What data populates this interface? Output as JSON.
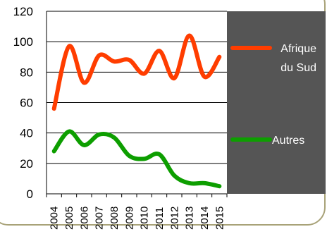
{
  "chart_data": {
    "type": "line",
    "x": [
      "2004",
      "2005",
      "2006",
      "2007",
      "2008",
      "2009",
      "2010",
      "2011",
      "2012",
      "2013",
      "2014",
      "2015"
    ],
    "series": [
      {
        "name": "Afrique du Sud",
        "color": "#ff3d00",
        "values": [
          56,
          97,
          73,
          91,
          87,
          88,
          79,
          94,
          76,
          104,
          77,
          90
        ],
        "legend_lines": [
          "Afrique",
          "du Sud"
        ]
      },
      {
        "name": "Autres",
        "color": "#0d9e00",
        "values": [
          28,
          41,
          32,
          39,
          37,
          25,
          23,
          26,
          12,
          7,
          7,
          5
        ],
        "legend_lines": [
          "Autres"
        ]
      }
    ],
    "ylim": [
      0,
      120
    ],
    "yticks": [
      0,
      20,
      40,
      60,
      80,
      100,
      120
    ],
    "grid": true,
    "legend_placement": "right",
    "legend_background": "#555555"
  }
}
